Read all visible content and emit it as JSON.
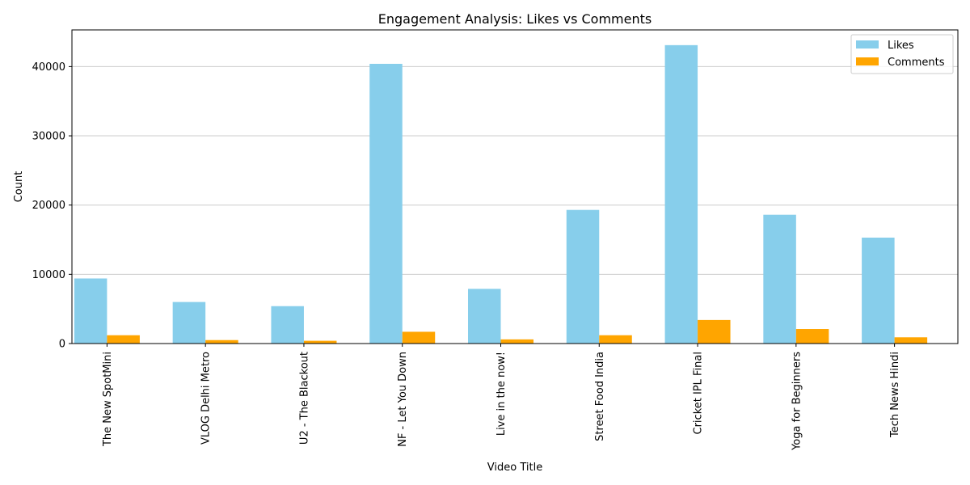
{
  "chart_data": {
    "type": "bar",
    "title": "Engagement Analysis: Likes vs Comments",
    "xlabel": "Video Title",
    "ylabel": "Count",
    "categories": [
      "The New SpotMini",
      "VLOG Delhi Metro",
      "U2 - The Blackout",
      "NF - Let You Down",
      "Live in the now!",
      "Street Food India",
      "Cricket IPL Final",
      "Yoga for Beginners",
      "Tech News Hindi"
    ],
    "series": [
      {
        "name": "Likes",
        "color": "#87CEEB",
        "values": [
          9400,
          6000,
          5400,
          40400,
          7900,
          19300,
          43100,
          18600,
          15300
        ]
      },
      {
        "name": "Comments",
        "color": "#FFA500",
        "values": [
          1200,
          500,
          400,
          1700,
          600,
          1200,
          3400,
          2100,
          900
        ]
      }
    ],
    "ylim": [
      0,
      45300
    ],
    "yticks": [
      0,
      10000,
      20000,
      30000,
      40000
    ],
    "grid": "y",
    "legend_position": "top-right"
  }
}
